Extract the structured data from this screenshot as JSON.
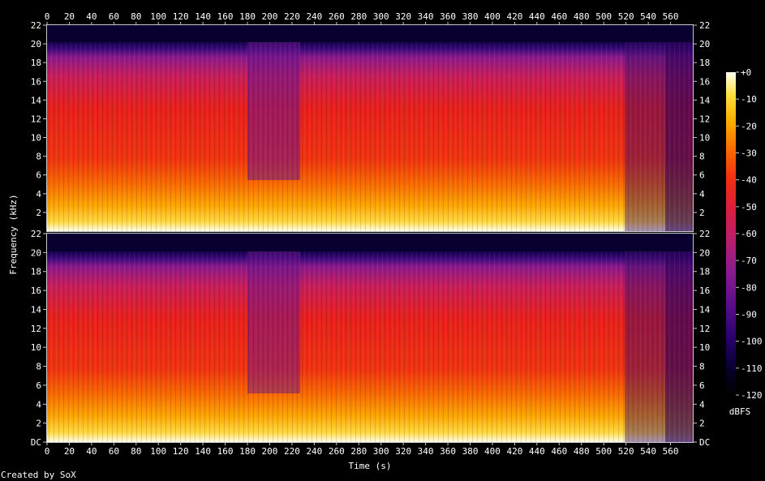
{
  "chart_data": {
    "type": "heatmap",
    "xlabel": "Time (s)",
    "ylabel": "Frequency (kHz)",
    "xlim": [
      0,
      580
    ],
    "ylim": [
      0,
      22
    ],
    "x_ticks": [
      "0",
      "20",
      "40",
      "60",
      "80",
      "100",
      "120",
      "140",
      "160",
      "180",
      "200",
      "220",
      "240",
      "260",
      "280",
      "300",
      "320",
      "340",
      "360",
      "380",
      "400",
      "420",
      "440",
      "460",
      "480",
      "500",
      "520",
      "540",
      "560"
    ],
    "y_ticks_top": [
      "22",
      "20",
      "18",
      "16",
      "14",
      "12",
      "10",
      "8",
      "6",
      "4",
      "2"
    ],
    "y_ticks_bottom": [
      "22",
      "20",
      "18",
      "16",
      "14",
      "12",
      "10",
      "8",
      "6",
      "4",
      "2",
      "DC"
    ],
    "channels": 2,
    "colorbar": {
      "label": "dBFS",
      "range": [
        -120,
        0
      ],
      "ticks": [
        "+0",
        "-10",
        "-20",
        "-30",
        "-40",
        "-50",
        "-60",
        "-70",
        "-80",
        "-90",
        "-100",
        "-110",
        "-120"
      ]
    },
    "footer": "Created by SoX",
    "colors": {
      "background": "#000000",
      "axis": "#c8c8c8",
      "text": "#ffffff",
      "colormap": [
        "#000000",
        "#0a0032",
        "#2a0070",
        "#5a0d8c",
        "#8a1a8e",
        "#b81f6e",
        "#dc1e3c",
        "#f03010",
        "#fa6a00",
        "#fdae00",
        "#ffe040",
        "#fffff0"
      ]
    }
  }
}
